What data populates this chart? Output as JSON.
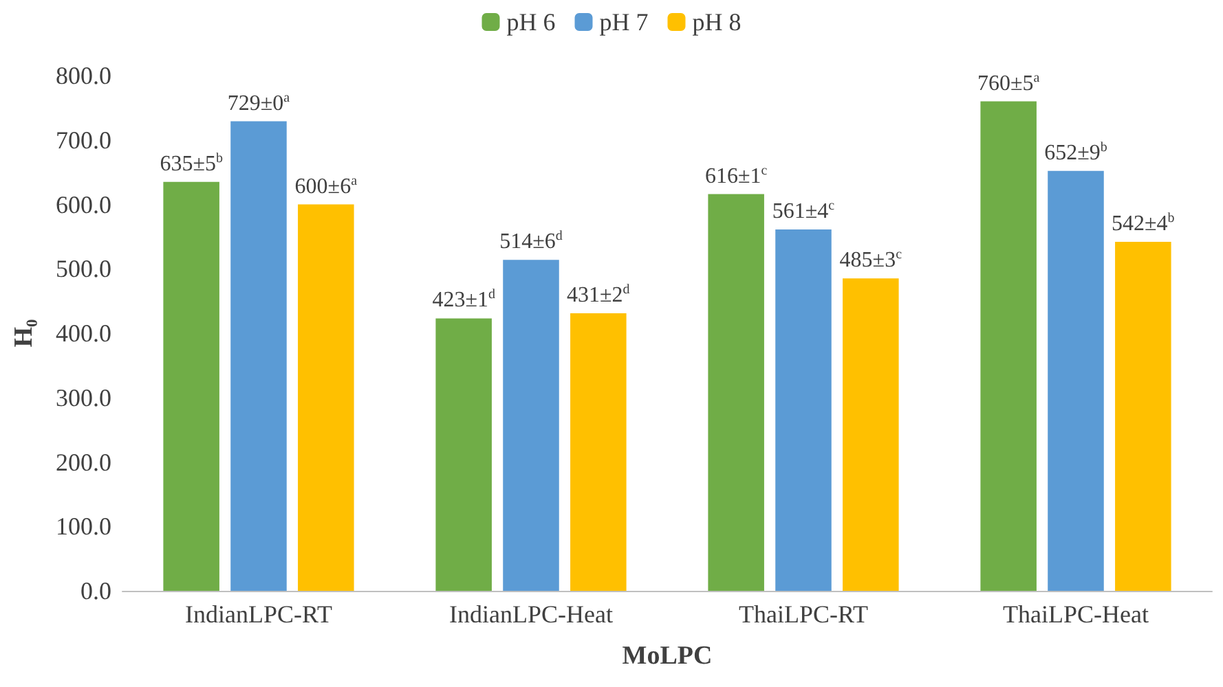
{
  "chart_data": {
    "type": "bar",
    "xlabel": "MoLPC",
    "ylabel": "H₀",
    "categories": [
      "IndianLPC-RT",
      "IndianLPC-Heat",
      "ThaiLPC-RT",
      "ThaiLPC-Heat"
    ],
    "series": [
      {
        "name": "pH 6",
        "color": "#70ad47",
        "values": [
          635,
          423,
          616,
          760
        ],
        "value_labels": [
          "635±5$^{b}$",
          "423±1$^{d}$",
          "616±1$^{c}$",
          "760±5$^{a}$"
        ]
      },
      {
        "name": "pH 7",
        "color": "#5b9bd5",
        "values": [
          729,
          514,
          561,
          652
        ],
        "value_labels": [
          "729±0$^{a}$",
          "514±6$^{d}$",
          "561±4$^{c}$",
          "652±9$^{b}$"
        ]
      },
      {
        "name": "pH 8",
        "color": "#ffc000",
        "values": [
          600,
          431,
          485,
          542
        ],
        "value_labels": [
          "600±6$^{a}$",
          "431±2$^{d}$",
          "485±3$^{c}$",
          "542±4$^{b}$"
        ]
      }
    ],
    "ylim": [
      0,
      800
    ],
    "yticks": [
      {
        "value": 0,
        "label": "0.0"
      },
      {
        "value": 100,
        "label": "100.0"
      },
      {
        "value": 200,
        "label": "200.0"
      },
      {
        "value": 300,
        "label": "300.0"
      },
      {
        "value": 400,
        "label": "400.0"
      },
      {
        "value": 500,
        "label": "500.0"
      },
      {
        "value": 600,
        "label": "600.0"
      },
      {
        "value": 700,
        "label": "700.0"
      },
      {
        "value": 800,
        "label": "800.0"
      }
    ],
    "legend": "top"
  }
}
